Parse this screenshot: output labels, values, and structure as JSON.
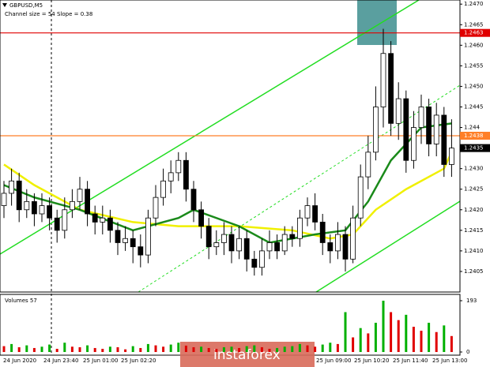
{
  "chart_data": {
    "type": "candlestick",
    "symbol": "GBPUSD,M5",
    "indicator_text": "Channel size = 54 Slope = 0.38",
    "ylim": [
      1.24,
      1.2471
    ],
    "yticks": [
      {
        "value": 1.247,
        "label": "1.2470"
      },
      {
        "value": 1.2465,
        "label": "1.2465"
      },
      {
        "value": 1.246,
        "label": "1.2460"
      },
      {
        "value": 1.2455,
        "label": "1.2455"
      },
      {
        "value": 1.245,
        "label": "1.2450"
      },
      {
        "value": 1.2445,
        "label": "1.2445"
      },
      1.244,
      {
        "value": 1.243,
        "label": "1.2430"
      },
      1.2425,
      {
        "value": 1.242,
        "label": "1.2420"
      },
      1.2415,
      {
        "value": 1.241,
        "label": "1.2410"
      },
      1.2405
    ],
    "levels": [
      {
        "value": 1.2463,
        "label": "1.2463",
        "color": "#e00000"
      },
      {
        "value": 1.2438,
        "label": "1.2438",
        "color": "#ff7f27"
      },
      {
        "value": 1.2435,
        "label": "1.2435",
        "color": "#000000"
      }
    ],
    "open": [
      1.2421,
      1.2424,
      1.2427,
      1.242,
      1.2422,
      1.2419,
      1.2421,
      1.2418,
      1.2415,
      1.242,
      1.2422,
      1.2425,
      1.2419,
      1.2417,
      1.2418,
      1.2415,
      1.2412,
      1.2413,
      1.2411,
      1.2409,
      1.2418,
      1.2423,
      1.2427,
      1.2429,
      1.2432,
      1.2425,
      1.242,
      1.2416,
      1.2411,
      1.2412,
      1.2414,
      1.241,
      1.2413,
      1.2408,
      1.2406,
      1.241,
      1.2412,
      1.241,
      1.2414,
      1.2413,
      1.2418,
      1.2421,
      1.2417,
      1.2412,
      1.241,
      1.2414,
      1.2408,
      1.2418,
      1.2428,
      1.2434,
      1.2445,
      1.2458,
      1.2441,
      1.2447,
      1.2432,
      1.244,
      1.2445,
      1.2436,
      1.2443,
      1.2431
    ],
    "high": [
      1.2427,
      1.243,
      1.2429,
      1.2425,
      1.2424,
      1.2424,
      1.2423,
      1.242,
      1.2423,
      1.2425,
      1.2428,
      1.2427,
      1.2421,
      1.2421,
      1.242,
      1.2417,
      1.2416,
      1.2415,
      1.2414,
      1.242,
      1.2426,
      1.243,
      1.2432,
      1.2434,
      1.2434,
      1.2427,
      1.2422,
      1.2418,
      1.2415,
      1.2417,
      1.2416,
      1.2416,
      1.2415,
      1.241,
      1.2413,
      1.2415,
      1.2414,
      1.2416,
      1.2416,
      1.242,
      1.2423,
      1.2424,
      1.2419,
      1.2414,
      1.2417,
      1.2416,
      1.2421,
      1.2431,
      1.2438,
      1.245,
      1.2464,
      1.2461,
      1.2451,
      1.2449,
      1.2444,
      1.2448,
      1.2447,
      1.2446,
      1.2445,
      1.2442
    ],
    "low": [
      1.2418,
      1.2421,
      1.2417,
      1.2418,
      1.2416,
      1.2417,
      1.2415,
      1.2412,
      1.2413,
      1.2418,
      1.242,
      1.2416,
      1.2414,
      1.2414,
      1.2412,
      1.2409,
      1.241,
      1.2407,
      1.2406,
      1.2407,
      1.2416,
      1.2421,
      1.2424,
      1.2427,
      1.2422,
      1.2417,
      1.2413,
      1.2408,
      1.2409,
      1.2409,
      1.2407,
      1.2408,
      1.2405,
      1.2404,
      1.2404,
      1.2408,
      1.2408,
      1.2409,
      1.2411,
      1.2411,
      1.2416,
      1.2415,
      1.2409,
      1.2407,
      1.2408,
      1.2405,
      1.2407,
      1.2416,
      1.2425,
      1.2432,
      1.244,
      1.2438,
      1.2437,
      1.2429,
      1.243,
      1.2436,
      1.2433,
      1.2433,
      1.2428,
      1.2428
    ],
    "close": [
      1.2424,
      1.2427,
      1.242,
      1.2422,
      1.2419,
      1.2421,
      1.2418,
      1.2415,
      1.242,
      1.2422,
      1.2425,
      1.2419,
      1.2417,
      1.2418,
      1.2415,
      1.2412,
      1.2413,
      1.2411,
      1.2409,
      1.2418,
      1.2423,
      1.2427,
      1.2429,
      1.2432,
      1.2425,
      1.242,
      1.2416,
      1.2411,
      1.2412,
      1.2414,
      1.241,
      1.2413,
      1.2408,
      1.2406,
      1.241,
      1.2412,
      1.241,
      1.2414,
      1.2413,
      1.2418,
      1.2421,
      1.2417,
      1.2412,
      1.241,
      1.2414,
      1.2408,
      1.2418,
      1.2428,
      1.2434,
      1.2445,
      1.2458,
      1.2441,
      1.2447,
      1.2432,
      1.244,
      1.2445,
      1.2436,
      1.2443,
      1.2431,
      1.2435
    ],
    "overlays": [
      {
        "color": "#f0f000",
        "x": [
          0,
          4,
          10,
          17,
          23,
          31,
          38,
          43,
          46,
          49,
          53,
          58,
          59
        ],
        "values": [
          1.2431,
          1.2426,
          1.242,
          1.2417,
          1.2416,
          1.2416,
          1.2415,
          1.2413,
          1.2414,
          1.242,
          1.2425,
          1.243,
          1.2434
        ]
      },
      {
        "color": "#1a8a1a",
        "x": [
          0,
          4,
          10,
          17,
          23,
          25,
          31,
          35,
          41,
          45,
          48,
          51,
          55,
          59
        ],
        "values": [
          1.2426,
          1.2423,
          1.242,
          1.2415,
          1.2418,
          1.242,
          1.2416,
          1.2412,
          1.2414,
          1.2415,
          1.2422,
          1.2432,
          1.244,
          1.2441
        ]
      }
    ],
    "volume_title": "Volumes 57",
    "vlim": [
      0,
      193
    ],
    "vticks": [
      0,
      193
    ],
    "volume_color": "#00b000",
    "volume_up_color": "#e00000",
    "volumes": [
      22,
      30,
      18,
      25,
      15,
      20,
      28,
      12,
      35,
      20,
      18,
      25,
      15,
      12,
      20,
      18,
      10,
      22,
      15,
      30,
      25,
      20,
      28,
      35,
      24,
      18,
      20,
      15,
      12,
      18,
      20,
      15,
      22,
      25,
      18,
      12,
      15,
      20,
      22,
      30,
      25,
      20,
      28,
      35,
      30,
      150,
      55,
      90,
      70,
      110,
      193,
      150,
      120,
      140,
      95,
      80,
      110,
      75,
      100,
      60
    ],
    "time_labels": [
      "24 Jun 2020",
      "24 Jun 23:40",
      "25 Jun 01:00",
      "25 Jun 02:20",
      "25 Jun 09:00",
      "25 Jun 10:20",
      "25 Jun 11:40",
      "25 Jun 13:00"
    ],
    "logo": "instaforex"
  }
}
